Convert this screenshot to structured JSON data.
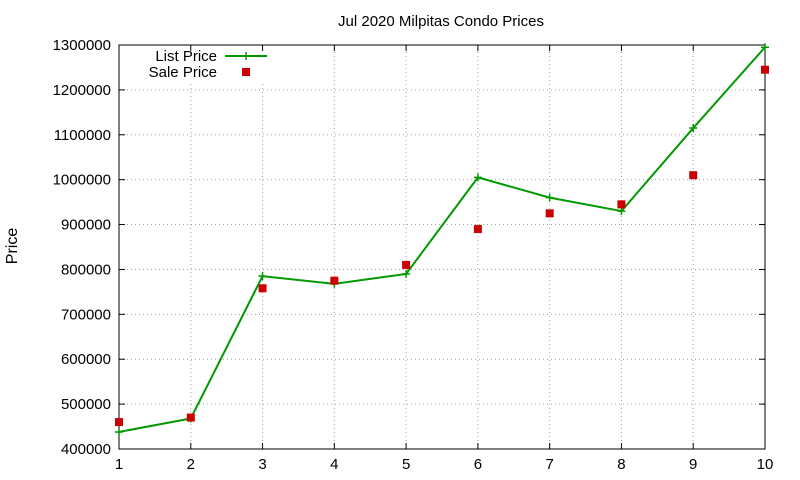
{
  "chart_data": {
    "type": "line",
    "title": "Jul 2020 Milpitas Condo Prices",
    "xlabel": "",
    "ylabel": "Price",
    "x": [
      1,
      2,
      3,
      4,
      5,
      6,
      7,
      8,
      9,
      10
    ],
    "xlim": [
      1,
      10
    ],
    "ylim": [
      400000,
      1300000
    ],
    "xticks": [
      "1",
      "2",
      "3",
      "4",
      "5",
      "6",
      "7",
      "8",
      "9",
      "10"
    ],
    "yticks": [
      "400000",
      "500000",
      "600000",
      "700000",
      "800000",
      "900000",
      "1000000",
      "1100000",
      "1200000",
      "1300000"
    ],
    "grid": true,
    "legend_position": "top-left",
    "series": [
      {
        "name": "List Price",
        "style": "line+cross",
        "color": "#009900",
        "values": [
          438000,
          468000,
          785000,
          768000,
          790000,
          1005000,
          960000,
          930000,
          1115000,
          1295000
        ]
      },
      {
        "name": "Sale Price",
        "style": "square",
        "color": "#cc0000",
        "values": [
          460000,
          470000,
          758000,
          775000,
          810000,
          890000,
          925000,
          945000,
          1010000,
          1245000
        ]
      }
    ]
  }
}
